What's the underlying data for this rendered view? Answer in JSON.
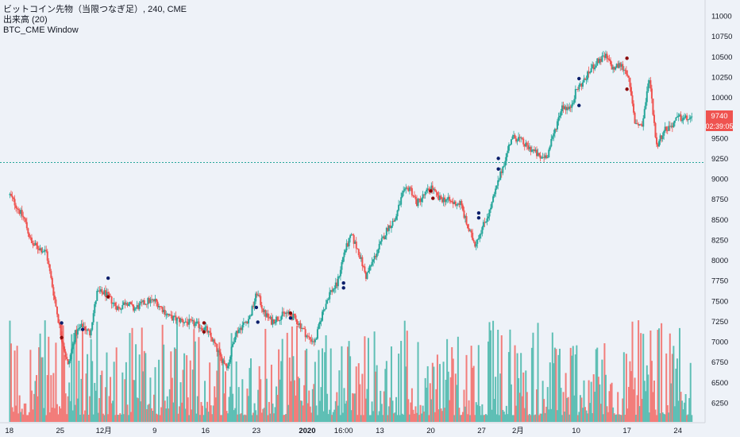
{
  "legend": {
    "title": "ビットコイン先物（当限つなぎ足）, 240, CME",
    "volume": "出来高 (20)",
    "window": "BTC_CME Window"
  },
  "price_badge": {
    "price": "9740",
    "countdown": "02:39:05",
    "color": "#ef5350"
  },
  "colors": {
    "up": "#26a69a",
    "down": "#ef5350",
    "vol_up": "#5fbfb5",
    "vol_down": "#f27d7a",
    "dot_dark": "#0b1f6b",
    "dot_red": "#8b0a0a",
    "hline": "#26a69a",
    "background": "#eef2f8"
  },
  "chart_data": {
    "type": "candlestick",
    "ylim": [
      6050,
      11150
    ],
    "yticks": [
      11000,
      10750,
      10500,
      10250,
      10000,
      9750,
      9500,
      9250,
      9000,
      8750,
      8500,
      8250,
      8000,
      7750,
      7500,
      7250,
      7000,
      6750,
      6500,
      6250
    ],
    "xticks": [
      {
        "label": "18",
        "x": 0
      },
      {
        "label": "25",
        "x": 7
      },
      {
        "label": "12月",
        "x": 13
      },
      {
        "label": "9",
        "x": 20
      },
      {
        "label": "16",
        "x": 27
      },
      {
        "label": "23",
        "x": 34
      },
      {
        "label": "2020",
        "x": 41,
        "bold": true
      },
      {
        "label": "16:00",
        "x": 46
      },
      {
        "label": "13",
        "x": 51
      },
      {
        "label": "20",
        "x": 58
      },
      {
        "label": "27",
        "x": 65
      },
      {
        "label": "2月",
        "x": 70
      },
      {
        "label": "10",
        "x": 78
      },
      {
        "label": "17",
        "x": 85
      },
      {
        "label": "24",
        "x": 92
      }
    ],
    "x_range": [
      0,
      94
    ],
    "horizontal_line": 9200,
    "price_path": [
      [
        0,
        8800
      ],
      [
        2,
        8500
      ],
      [
        3,
        8200
      ],
      [
        5,
        8100
      ],
      [
        6,
        7600
      ],
      [
        7,
        7100
      ],
      [
        8,
        6700
      ],
      [
        9,
        7100
      ],
      [
        10,
        7200
      ],
      [
        11,
        7100
      ],
      [
        12,
        7600
      ],
      [
        13,
        7600
      ],
      [
        14,
        7500
      ],
      [
        15,
        7400
      ],
      [
        16,
        7500
      ],
      [
        17,
        7400
      ],
      [
        18,
        7450
      ],
      [
        19,
        7500
      ],
      [
        20,
        7500
      ],
      [
        21,
        7400
      ],
      [
        22,
        7300
      ],
      [
        24,
        7250
      ],
      [
        26,
        7200
      ],
      [
        27,
        7150
      ],
      [
        28,
        7000
      ],
      [
        29,
        6800
      ],
      [
        30,
        6700
      ],
      [
        31,
        7100
      ],
      [
        32,
        7200
      ],
      [
        33,
        7300
      ],
      [
        34,
        7600
      ],
      [
        35,
        7350
      ],
      [
        36,
        7250
      ],
      [
        37,
        7300
      ],
      [
        38,
        7350
      ],
      [
        39,
        7300
      ],
      [
        40,
        7200
      ],
      [
        41,
        7050
      ],
      [
        42,
        7000
      ],
      [
        43,
        7350
      ],
      [
        44,
        7600
      ],
      [
        45,
        7700
      ],
      [
        46,
        8100
      ],
      [
        47,
        8300
      ],
      [
        48,
        8100
      ],
      [
        49,
        7800
      ],
      [
        50,
        8000
      ],
      [
        51,
        8200
      ],
      [
        52,
        8400
      ],
      [
        53,
        8500
      ],
      [
        54,
        8800
      ],
      [
        55,
        8900
      ],
      [
        56,
        8700
      ],
      [
        57,
        8800
      ],
      [
        58,
        8900
      ],
      [
        59,
        8750
      ],
      [
        60,
        8750
      ],
      [
        61,
        8700
      ],
      [
        62,
        8700
      ],
      [
        63,
        8400
      ],
      [
        64,
        8200
      ],
      [
        65,
        8400
      ],
      [
        66,
        8600
      ],
      [
        67,
        8900
      ],
      [
        68,
        9200
      ],
      [
        69,
        9500
      ],
      [
        70,
        9500
      ],
      [
        71,
        9400
      ],
      [
        72,
        9350
      ],
      [
        73,
        9250
      ],
      [
        74,
        9300
      ],
      [
        75,
        9600
      ],
      [
        76,
        9900
      ],
      [
        77,
        9850
      ],
      [
        78,
        10100
      ],
      [
        79,
        10200
      ],
      [
        80,
        10350
      ],
      [
        81,
        10450
      ],
      [
        82,
        10500
      ],
      [
        83,
        10350
      ],
      [
        84,
        10400
      ],
      [
        85,
        10300
      ],
      [
        86,
        9700
      ],
      [
        87,
        9650
      ],
      [
        88,
        10250
      ],
      [
        89,
        9400
      ],
      [
        90,
        9600
      ],
      [
        91,
        9650
      ],
      [
        92,
        9750
      ],
      [
        93,
        9740
      ]
    ],
    "volume_max": 7000,
    "volume_labels": "no",
    "markers": [
      {
        "x": 7.2,
        "y": 7230,
        "color": "dark"
      },
      {
        "x": 7.2,
        "y": 7050,
        "color": "red"
      },
      {
        "x": 10.1,
        "y": 7150,
        "color": "dark"
      },
      {
        "x": 13.6,
        "y": 7780,
        "color": "dark"
      },
      {
        "x": 13.6,
        "y": 7550,
        "color": "red"
      },
      {
        "x": 26.8,
        "y": 7230,
        "color": "red"
      },
      {
        "x": 26.8,
        "y": 7120,
        "color": "red"
      },
      {
        "x": 34.0,
        "y": 7420,
        "color": "dark"
      },
      {
        "x": 34.2,
        "y": 7240,
        "color": "dark"
      },
      {
        "x": 38.7,
        "y": 7350,
        "color": "red"
      },
      {
        "x": 38.7,
        "y": 7290,
        "color": "dark"
      },
      {
        "x": 46.0,
        "y": 7720,
        "color": "dark"
      },
      {
        "x": 46.0,
        "y": 7660,
        "color": "dark"
      },
      {
        "x": 58.0,
        "y": 8850,
        "color": "red"
      },
      {
        "x": 58.3,
        "y": 8760,
        "color": "red"
      },
      {
        "x": 64.6,
        "y": 8580,
        "color": "dark"
      },
      {
        "x": 64.6,
        "y": 8520,
        "color": "dark"
      },
      {
        "x": 67.3,
        "y": 9250,
        "color": "dark"
      },
      {
        "x": 67.3,
        "y": 9120,
        "color": "dark"
      },
      {
        "x": 78.4,
        "y": 10230,
        "color": "dark"
      },
      {
        "x": 78.4,
        "y": 9900,
        "color": "dark"
      },
      {
        "x": 85.0,
        "y": 10480,
        "color": "red"
      },
      {
        "x": 85.0,
        "y": 10100,
        "color": "red"
      }
    ]
  }
}
